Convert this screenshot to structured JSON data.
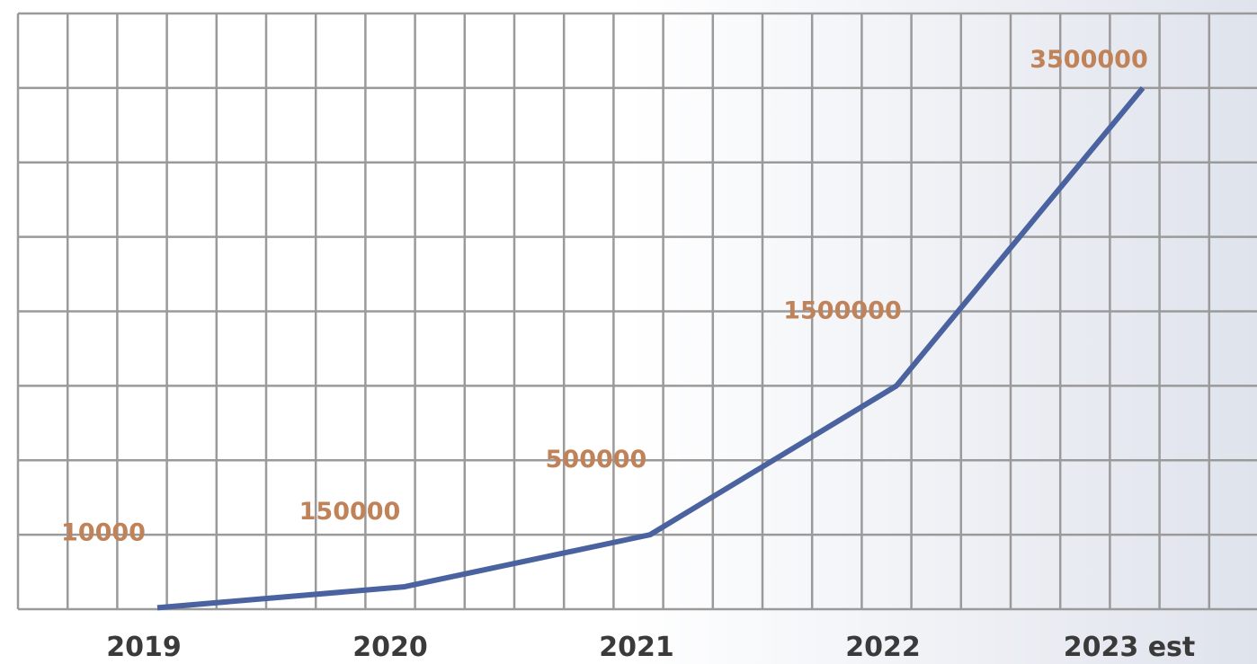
{
  "chart_data": {
    "type": "line",
    "categories": [
      "2019",
      "2020",
      "2021",
      "2022",
      "2023 est"
    ],
    "values": [
      10000,
      150000,
      500000,
      1500000,
      3500000
    ],
    "color": "#4a62a0",
    "label_color": "#c08258",
    "ylim": [
      0,
      4000000
    ],
    "grid": true
  }
}
